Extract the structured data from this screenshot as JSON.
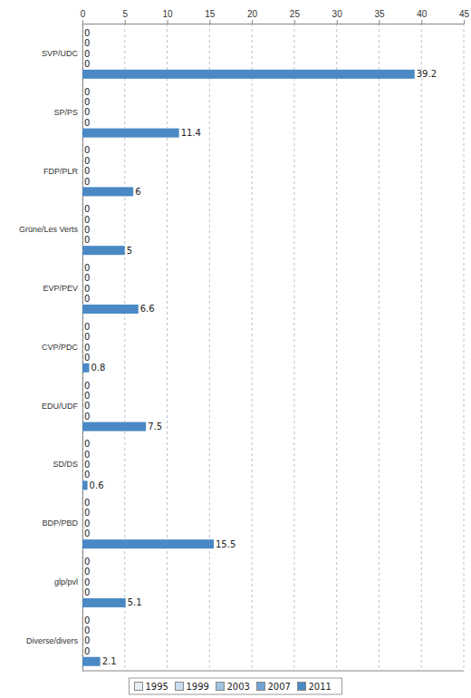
{
  "chart_data": {
    "type": "bar",
    "orientation": "horizontal",
    "categories": [
      "SVP/UDC",
      "SP/PS",
      "FDP/PLR",
      "Grüne/Les Verts",
      "EVP/PEV",
      "CVP/PDC",
      "EDU/UDF",
      "SD/DS",
      "BDP/PBD",
      "glp/pvl",
      "Diverse/divers"
    ],
    "series": [
      {
        "name": "1995",
        "color": "#e8f0f8",
        "values": [
          0,
          0,
          0,
          0,
          0,
          0,
          0,
          0,
          0,
          0,
          0
        ]
      },
      {
        "name": "1999",
        "color": "#c9ddf0",
        "values": [
          0,
          0,
          0,
          0,
          0,
          0,
          0,
          0,
          0,
          0,
          0
        ]
      },
      {
        "name": "2003",
        "color": "#9fc3e3",
        "values": [
          0,
          0,
          0,
          0,
          0,
          0,
          0,
          0,
          0,
          0,
          0
        ]
      },
      {
        "name": "2007",
        "color": "#6fa3d3",
        "values": [
          0,
          0,
          0,
          0,
          0,
          0,
          0,
          0,
          0,
          0,
          0
        ]
      },
      {
        "name": "2011",
        "color": "#4a89c4",
        "values": [
          39.2,
          11.4,
          6,
          5,
          6.6,
          0.8,
          7.5,
          0.6,
          15.5,
          5.1,
          2.1
        ]
      }
    ],
    "xlim": [
      0,
      45
    ],
    "xticks": [
      0,
      5,
      10,
      15,
      20,
      25,
      30,
      35,
      40,
      45
    ],
    "grid": true,
    "data_labels": true,
    "legend": "bottom"
  }
}
